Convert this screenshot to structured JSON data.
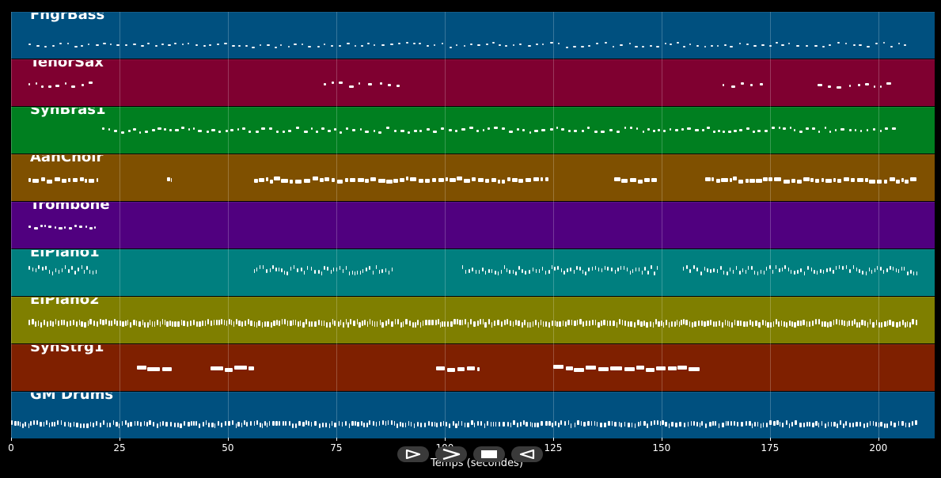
{
  "window": {
    "title": ""
  },
  "tracks": [
    {
      "name": "FngrBass",
      "color": "#00507f"
    },
    {
      "name": "TenorSax",
      "color": "#7f0030"
    },
    {
      "name": "SynBras1",
      "color": "#007f20"
    },
    {
      "name": "AahChoir",
      "color": "#7f5000"
    },
    {
      "name": "Trombone",
      "color": "#50007f"
    },
    {
      "name": "ElPiano1",
      "color": "#007f7f"
    },
    {
      "name": "ElPiano2",
      "color": "#7f7f00"
    },
    {
      "name": "SynStrg1",
      "color": "#7f2000"
    },
    {
      "name": "GM Drums",
      "color": "#00507f"
    }
  ],
  "x_axis": {
    "label": "Temps (secondes)",
    "min": 0,
    "max": 213,
    "ticks": [
      "0",
      "25",
      "50",
      "75",
      "100",
      "125",
      "150",
      "175",
      "200"
    ],
    "tick_values": [
      0,
      25,
      50,
      75,
      100,
      125,
      150,
      175,
      200
    ]
  },
  "controls": [
    {
      "name": "play-button",
      "icon": "play-icon"
    },
    {
      "name": "forward-button",
      "icon": "forward-icon"
    },
    {
      "name": "stop-button",
      "icon": "stop-icon"
    },
    {
      "name": "rewind-button",
      "icon": "rewind-icon"
    }
  ],
  "chart_data": {
    "type": "timeline",
    "xlabel": "Temps (secondes)",
    "xlim": [
      0,
      213
    ],
    "series": [
      {
        "name": "FngrBass",
        "segments": [
          [
            4,
            207
          ]
        ]
      },
      {
        "name": "TenorSax",
        "segments": [
          [
            4,
            20
          ],
          [
            72,
            90
          ],
          [
            164,
            174
          ],
          [
            186,
            204
          ]
        ]
      },
      {
        "name": "SynBras1",
        "segments": [
          [
            21,
            204
          ]
        ]
      },
      {
        "name": "AahChoir",
        "segments": [
          [
            4,
            20
          ],
          [
            36,
            37
          ],
          [
            56,
            97
          ],
          [
            97,
            124
          ],
          [
            139,
            149
          ],
          [
            160,
            209
          ]
        ]
      },
      {
        "name": "Trombone",
        "segments": [
          [
            4,
            20
          ]
        ]
      },
      {
        "name": "ElPiano1",
        "segments": [
          [
            4,
            20
          ],
          [
            56,
            88
          ],
          [
            104,
            149
          ],
          [
            155,
            209
          ]
        ]
      },
      {
        "name": "ElPiano2",
        "segments": [
          [
            4,
            209
          ]
        ]
      },
      {
        "name": "SynStrg1",
        "segments": [
          [
            29,
            37
          ],
          [
            46,
            56
          ],
          [
            98,
            108
          ],
          [
            125,
            159
          ]
        ]
      },
      {
        "name": "GM Drums",
        "segments": [
          [
            0,
            209
          ]
        ]
      }
    ]
  }
}
